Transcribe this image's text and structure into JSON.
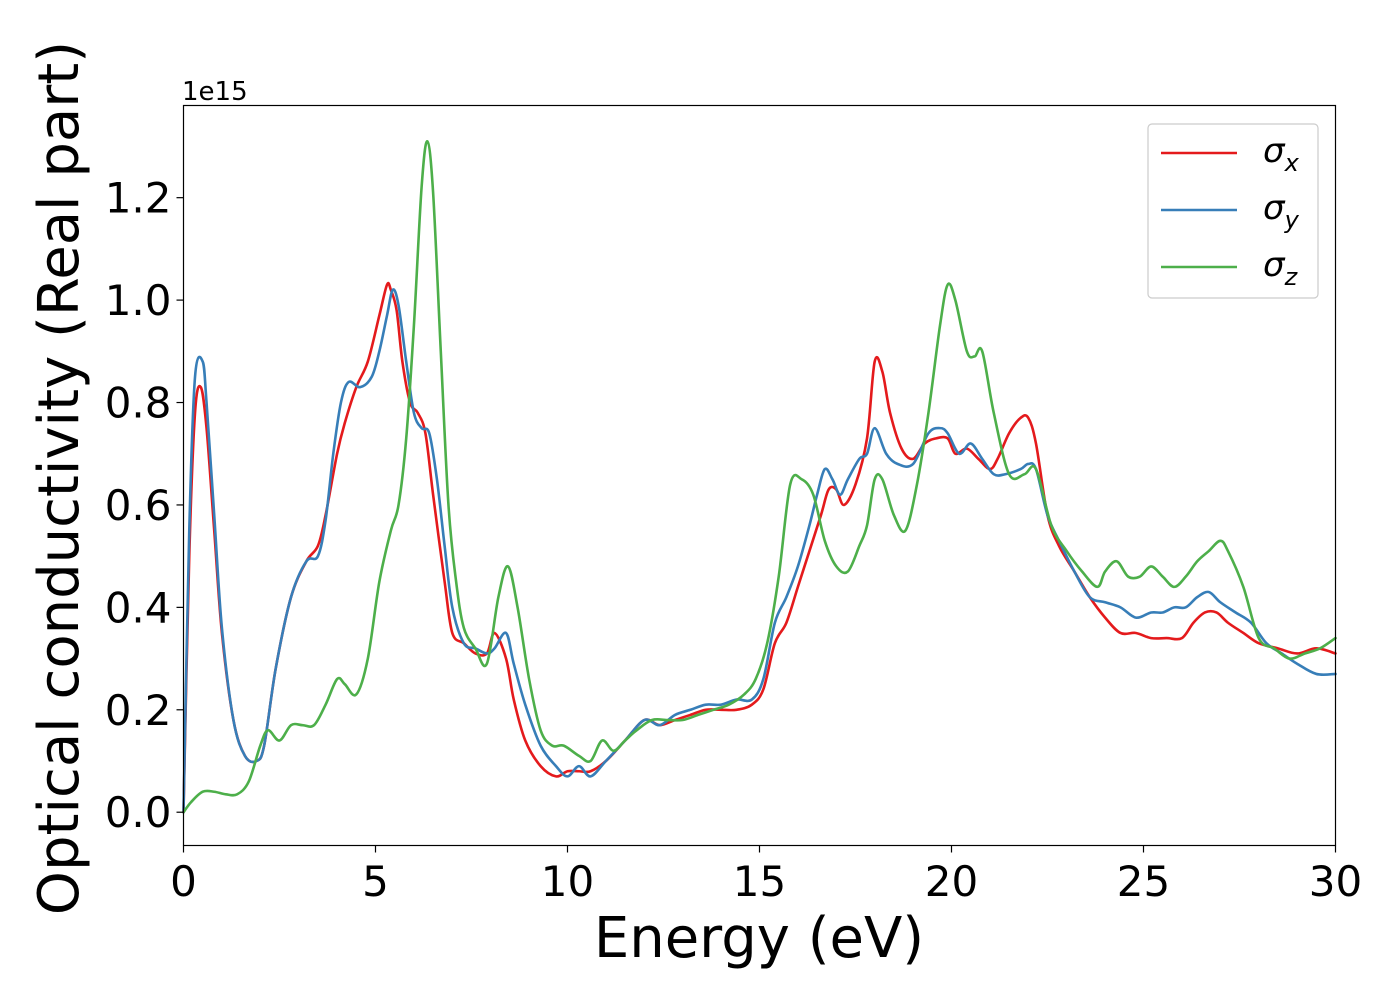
{
  "chart_data": {
    "type": "line",
    "xlabel": "Energy (eV)",
    "ylabel": "Optical conductivity (Real part)",
    "offset_label": "1e15",
    "xlim": [
      0,
      30
    ],
    "ylim": [
      -0.065,
      1.38
    ],
    "xticks": [
      0,
      5,
      10,
      15,
      20,
      25,
      30
    ],
    "xtick_labels": [
      "0",
      "5",
      "10",
      "15",
      "20",
      "25",
      "30"
    ],
    "yticks": [
      0.0,
      0.2,
      0.4,
      0.6,
      0.8,
      1.0,
      1.2
    ],
    "ytick_labels": [
      "0.0",
      "0.2",
      "0.4",
      "0.6",
      "0.8",
      "1.0",
      "1.2"
    ],
    "grid": false,
    "legend_position": "top-right",
    "series": [
      {
        "name": "σx",
        "symbol": "σ",
        "subscript": "x",
        "color": "#e41a1c",
        "x": [
          0,
          0.15,
          0.3,
          0.45,
          0.6,
          0.8,
          1.0,
          1.3,
          1.6,
          1.9,
          2.1,
          2.4,
          2.8,
          3.2,
          3.5,
          3.7,
          4.0,
          4.2,
          4.5,
          4.8,
          5.1,
          5.3,
          5.4,
          5.55,
          5.7,
          5.9,
          6.1,
          6.3,
          6.5,
          6.8,
          7.0,
          7.3,
          7.6,
          7.9,
          8.1,
          8.4,
          8.6,
          8.9,
          9.3,
          9.7,
          10.0,
          10.3,
          10.6,
          11.0,
          11.5,
          12.0,
          12.4,
          12.8,
          13.2,
          13.6,
          14.0,
          14.4,
          14.8,
          15.1,
          15.4,
          15.7,
          16.0,
          16.3,
          16.6,
          16.8,
          17.0,
          17.2,
          17.5,
          17.8,
          18.0,
          18.2,
          18.4,
          18.7,
          19.0,
          19.3,
          19.6,
          19.9,
          20.1,
          20.4,
          20.7,
          21.0,
          21.2,
          21.5,
          21.8,
          22.0,
          22.2,
          22.5,
          22.8,
          23.2,
          23.6,
          24.0,
          24.4,
          24.8,
          25.2,
          25.6,
          26.0,
          26.3,
          26.6,
          26.9,
          27.2,
          27.6,
          28.0,
          28.5,
          29.0,
          29.5,
          30.0
        ],
        "y": [
          0,
          0.5,
          0.78,
          0.83,
          0.75,
          0.55,
          0.35,
          0.18,
          0.11,
          0.1,
          0.13,
          0.28,
          0.42,
          0.49,
          0.52,
          0.58,
          0.7,
          0.76,
          0.83,
          0.88,
          0.97,
          1.03,
          1.02,
          0.98,
          0.88,
          0.8,
          0.78,
          0.74,
          0.62,
          0.45,
          0.35,
          0.33,
          0.31,
          0.31,
          0.35,
          0.3,
          0.22,
          0.14,
          0.09,
          0.07,
          0.08,
          0.08,
          0.08,
          0.1,
          0.14,
          0.18,
          0.17,
          0.18,
          0.19,
          0.2,
          0.2,
          0.2,
          0.21,
          0.24,
          0.33,
          0.37,
          0.44,
          0.51,
          0.58,
          0.63,
          0.63,
          0.6,
          0.64,
          0.73,
          0.88,
          0.86,
          0.78,
          0.71,
          0.69,
          0.72,
          0.73,
          0.73,
          0.7,
          0.71,
          0.69,
          0.67,
          0.69,
          0.74,
          0.77,
          0.77,
          0.72,
          0.58,
          0.52,
          0.47,
          0.42,
          0.38,
          0.35,
          0.35,
          0.34,
          0.34,
          0.34,
          0.37,
          0.39,
          0.39,
          0.37,
          0.35,
          0.33,
          0.32,
          0.31,
          0.32,
          0.31
        ]
      },
      {
        "name": "σy",
        "symbol": "σ",
        "subscript": "y",
        "color": "#377eb8",
        "x": [
          0,
          0.15,
          0.3,
          0.5,
          0.6,
          0.8,
          1.0,
          1.3,
          1.6,
          1.9,
          2.1,
          2.4,
          2.8,
          3.2,
          3.5,
          3.7,
          3.9,
          4.1,
          4.3,
          4.6,
          4.9,
          5.1,
          5.3,
          5.45,
          5.6,
          5.8,
          6.0,
          6.2,
          6.4,
          6.6,
          6.8,
          7.0,
          7.3,
          7.6,
          7.9,
          8.1,
          8.4,
          8.6,
          8.9,
          9.3,
          9.7,
          10.0,
          10.3,
          10.6,
          11.0,
          11.5,
          12.0,
          12.4,
          12.8,
          13.2,
          13.6,
          14.0,
          14.4,
          14.8,
          15.1,
          15.4,
          15.7,
          16.0,
          16.3,
          16.5,
          16.7,
          16.9,
          17.1,
          17.3,
          17.6,
          17.8,
          18.0,
          18.3,
          18.6,
          19.0,
          19.4,
          19.7,
          19.9,
          20.2,
          20.5,
          20.8,
          21.1,
          21.4,
          21.8,
          22.0,
          22.2,
          22.5,
          22.8,
          23.2,
          23.6,
          24.0,
          24.4,
          24.8,
          25.2,
          25.5,
          25.8,
          26.1,
          26.4,
          26.7,
          27.0,
          27.4,
          27.8,
          28.2,
          28.6,
          29.0,
          29.5,
          30.0
        ],
        "y": [
          0,
          0.55,
          0.85,
          0.88,
          0.8,
          0.58,
          0.36,
          0.18,
          0.11,
          0.1,
          0.13,
          0.28,
          0.42,
          0.49,
          0.5,
          0.57,
          0.7,
          0.8,
          0.84,
          0.83,
          0.85,
          0.9,
          0.97,
          1.02,
          0.99,
          0.88,
          0.78,
          0.75,
          0.74,
          0.65,
          0.52,
          0.4,
          0.33,
          0.32,
          0.31,
          0.32,
          0.35,
          0.29,
          0.21,
          0.13,
          0.09,
          0.07,
          0.09,
          0.07,
          0.1,
          0.14,
          0.18,
          0.17,
          0.19,
          0.2,
          0.21,
          0.21,
          0.22,
          0.22,
          0.26,
          0.37,
          0.42,
          0.48,
          0.56,
          0.62,
          0.67,
          0.65,
          0.62,
          0.65,
          0.69,
          0.7,
          0.75,
          0.7,
          0.68,
          0.68,
          0.74,
          0.75,
          0.74,
          0.7,
          0.72,
          0.69,
          0.66,
          0.66,
          0.67,
          0.68,
          0.67,
          0.58,
          0.53,
          0.47,
          0.42,
          0.41,
          0.4,
          0.38,
          0.39,
          0.39,
          0.4,
          0.4,
          0.42,
          0.43,
          0.41,
          0.39,
          0.37,
          0.33,
          0.31,
          0.29,
          0.27,
          0.27
        ]
      },
      {
        "name": "σz",
        "symbol": "σ",
        "subscript": "z",
        "color": "#4daf4a",
        "x": [
          0,
          0.2,
          0.5,
          0.8,
          1.1,
          1.4,
          1.7,
          2.0,
          2.2,
          2.5,
          2.8,
          3.1,
          3.4,
          3.7,
          4.0,
          4.2,
          4.5,
          4.8,
          5.1,
          5.4,
          5.6,
          5.8,
          6.0,
          6.2,
          6.35,
          6.5,
          6.7,
          6.9,
          7.1,
          7.3,
          7.6,
          7.9,
          8.2,
          8.45,
          8.7,
          9.0,
          9.3,
          9.6,
          9.9,
          10.3,
          10.6,
          10.9,
          11.2,
          11.5,
          11.8,
          12.2,
          12.6,
          13.0,
          13.4,
          13.8,
          14.2,
          14.6,
          14.9,
          15.2,
          15.5,
          15.8,
          16.1,
          16.4,
          16.7,
          17.0,
          17.3,
          17.6,
          17.8,
          18.0,
          18.2,
          18.5,
          18.8,
          19.1,
          19.4,
          19.7,
          19.9,
          20.1,
          20.4,
          20.6,
          20.8,
          21.1,
          21.5,
          21.9,
          22.2,
          22.6,
          23.0,
          23.4,
          23.8,
          24.0,
          24.3,
          24.6,
          24.9,
          25.2,
          25.5,
          25.8,
          26.1,
          26.4,
          26.7,
          27.0,
          27.2,
          27.6,
          28.0,
          28.4,
          28.8,
          29.2,
          29.6,
          30.0
        ],
        "y": [
          0,
          0.02,
          0.04,
          0.04,
          0.035,
          0.035,
          0.06,
          0.13,
          0.16,
          0.14,
          0.17,
          0.17,
          0.17,
          0.21,
          0.26,
          0.25,
          0.23,
          0.3,
          0.45,
          0.55,
          0.6,
          0.73,
          0.95,
          1.22,
          1.31,
          1.21,
          0.9,
          0.6,
          0.45,
          0.36,
          0.32,
          0.29,
          0.42,
          0.48,
          0.4,
          0.26,
          0.16,
          0.13,
          0.13,
          0.11,
          0.1,
          0.14,
          0.12,
          0.14,
          0.16,
          0.18,
          0.18,
          0.18,
          0.19,
          0.2,
          0.21,
          0.23,
          0.26,
          0.33,
          0.46,
          0.64,
          0.65,
          0.62,
          0.53,
          0.48,
          0.47,
          0.52,
          0.56,
          0.65,
          0.65,
          0.58,
          0.55,
          0.64,
          0.78,
          0.95,
          1.03,
          1.0,
          0.9,
          0.89,
          0.9,
          0.78,
          0.66,
          0.66,
          0.67,
          0.56,
          0.51,
          0.47,
          0.44,
          0.47,
          0.49,
          0.46,
          0.46,
          0.48,
          0.46,
          0.44,
          0.46,
          0.49,
          0.51,
          0.53,
          0.51,
          0.44,
          0.34,
          0.32,
          0.3,
          0.31,
          0.32,
          0.34
        ]
      }
    ]
  }
}
